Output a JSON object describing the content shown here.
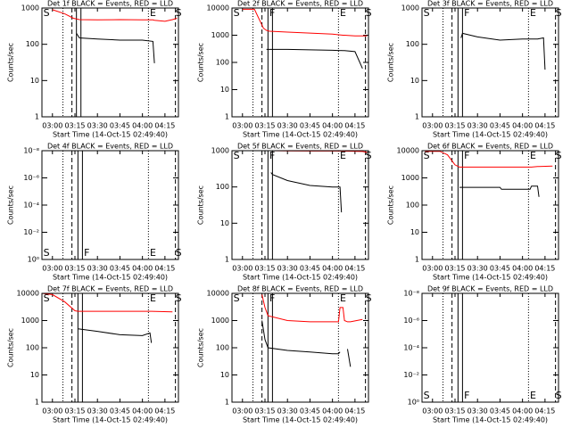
{
  "chart_data": [
    {
      "type": "line",
      "title": "Det 1f BLACK = Events, RED = LLD",
      "xlabel": "Start Time (14-Oct-15 02:49:40)",
      "ylabel": "Counts/sec",
      "log_y": true,
      "flags_at": "top",
      "xlim": [
        "02:53",
        "04:24"
      ],
      "xticks": [
        "03:00",
        "03:15",
        "03:30",
        "03:45",
        "04:00",
        "04:15"
      ],
      "ylim": [
        1,
        1000
      ],
      "yticks": [
        1,
        10,
        100,
        1000
      ],
      "x": [
        "03:00",
        "03:08",
        "03:14",
        "03:16",
        "03:18",
        "03:30",
        "03:45",
        "04:00",
        "04:07",
        "04:08",
        "04:15",
        "04:20",
        "04:23"
      ],
      "series": [
        {
          "name": "RED = LLD",
          "color": "#ff0000",
          "values": [
            900,
            700,
            520,
            500,
            480,
            470,
            480,
            470,
            470,
            460,
            430,
            480,
            520
          ]
        },
        {
          "name": "BLACK = Events",
          "color": "#000000",
          "values": [
            null,
            null,
            null,
            200,
            150,
            140,
            130,
            130,
            120,
            30,
            null,
            null,
            null
          ]
        }
      ],
      "markers": [
        {
          "time": "03:07",
          "style": "dotted"
        },
        {
          "time": "03:13",
          "style": "dashed"
        },
        {
          "time": "03:16",
          "style": "solid"
        },
        {
          "time": "03:19",
          "style": "solid"
        },
        {
          "time": "04:04",
          "style": "dotted"
        },
        {
          "time": "04:22",
          "style": "dashed"
        }
      ],
      "flags": [
        {
          "label": "S",
          "time": "02:54"
        },
        {
          "label": "E",
          "time": "04:05"
        },
        {
          "label": "S",
          "time": "04:22"
        }
      ]
    },
    {
      "type": "line",
      "title": "Det 2f BLACK = Events, RED = LLD",
      "xlabel": "Start Time (14-Oct-15 02:49:40)",
      "ylabel": "Counts/sec",
      "log_y": true,
      "flags_at": "top",
      "xlim": [
        "02:53",
        "04:24"
      ],
      "xticks": [
        "03:00",
        "03:15",
        "03:30",
        "03:45",
        "04:00",
        "04:15"
      ],
      "ylim": [
        1,
        10000
      ],
      "yticks": [
        1,
        10,
        100,
        1000,
        10000
      ],
      "x": [
        "03:00",
        "03:08",
        "03:14",
        "03:16",
        "03:18",
        "03:30",
        "03:45",
        "04:00",
        "04:07",
        "04:08",
        "04:15",
        "04:20",
        "04:23"
      ],
      "series": [
        {
          "name": "RED = LLD",
          "color": "#ff0000",
          "values": [
            9000,
            9000,
            1800,
            1500,
            1400,
            1300,
            1200,
            1100,
            1000,
            1000,
            950,
            950,
            950
          ]
        },
        {
          "name": "BLACK = Events",
          "color": "#000000",
          "values": [
            null,
            null,
            null,
            300,
            300,
            300,
            290,
            280,
            270,
            270,
            250,
            60,
            null
          ]
        }
      ],
      "markers": [
        {
          "time": "03:07",
          "style": "dotted"
        },
        {
          "time": "03:13",
          "style": "dashed"
        },
        {
          "time": "03:17",
          "style": "solid"
        },
        {
          "time": "03:20",
          "style": "solid"
        },
        {
          "time": "04:04",
          "style": "dotted"
        },
        {
          "time": "04:22",
          "style": "dashed"
        }
      ],
      "flags": [
        {
          "label": "S",
          "time": "02:54"
        },
        {
          "label": "F",
          "time": "03:18"
        },
        {
          "label": "E",
          "time": "04:05"
        },
        {
          "label": "S",
          "time": "04:22"
        }
      ]
    },
    {
      "type": "line",
      "title": "Det 3f BLACK = Events, RED = LLD",
      "xlabel": "Start Time (14-Oct-15 02:49:40)",
      "ylabel": "Counts/sec",
      "log_y": true,
      "flags_at": "top",
      "xlim": [
        "02:53",
        "04:24"
      ],
      "xticks": [
        "03:00",
        "03:15",
        "03:30",
        "03:45",
        "04:00",
        "04:15"
      ],
      "ylim": [
        1,
        1000
      ],
      "yticks": [
        1,
        10,
        100,
        1000
      ],
      "x": [
        "03:19",
        "03:20",
        "03:30",
        "03:45",
        "04:00",
        "04:10",
        "04:14",
        "04:15"
      ],
      "series": [
        {
          "name": "BLACK = Events",
          "color": "#000000",
          "values": [
            150,
            200,
            160,
            130,
            140,
            140,
            150,
            20
          ]
        }
      ],
      "markers": [
        {
          "time": "03:07",
          "style": "dotted"
        },
        {
          "time": "03:13",
          "style": "dashed"
        },
        {
          "time": "03:17",
          "style": "solid"
        },
        {
          "time": "03:20",
          "style": "solid"
        },
        {
          "time": "04:04",
          "style": "dotted"
        },
        {
          "time": "04:22",
          "style": "dashed"
        }
      ],
      "flags": [
        {
          "label": "S",
          "time": "02:54"
        },
        {
          "label": "F",
          "time": "03:21"
        },
        {
          "label": "E",
          "time": "04:05"
        },
        {
          "label": "S",
          "time": "04:22"
        }
      ]
    },
    {
      "type": "line",
      "title": "Det 4f BLACK = Events, RED = LLD",
      "xlabel": "Start Time (14-Oct-15 02:49:40)",
      "ylabel": "Counts/sec",
      "log_y": true,
      "flags_at": "bottom",
      "xlim": [
        "02:53",
        "04:24"
      ],
      "xticks": [
        "03:00",
        "03:15",
        "03:30",
        "03:45",
        "04:00",
        "04:15"
      ],
      "ylim": [
        1,
        1e-08
      ],
      "yticks": [
        {
          "value": 1,
          "label": "10⁰"
        },
        {
          "value": 0.01,
          "label": "10⁻²"
        },
        {
          "value": 0.0001,
          "label": "10⁻⁴"
        },
        {
          "value": 1e-06,
          "label": "10⁻⁶"
        },
        {
          "value": 1e-08,
          "label": "10⁻⁸"
        }
      ],
      "x": [],
      "series": [],
      "markers": [
        {
          "time": "03:07",
          "style": "dotted"
        },
        {
          "time": "03:13",
          "style": "dashed"
        },
        {
          "time": "03:17",
          "style": "solid"
        },
        {
          "time": "03:20",
          "style": "solid"
        },
        {
          "time": "04:04",
          "style": "dotted"
        },
        {
          "time": "04:22",
          "style": "dashed"
        }
      ],
      "flags": [
        {
          "label": "S",
          "time": "02:54"
        },
        {
          "label": "F",
          "time": "03:21"
        },
        {
          "label": "E",
          "time": "04:05"
        },
        {
          "label": "S",
          "time": "04:22"
        }
      ]
    },
    {
      "type": "line",
      "title": "Det 5f BLACK = Events, RED = LLD",
      "xlabel": "Start Time (14-Oct-15 02:49:40)",
      "ylabel": "Counts/sec",
      "log_y": true,
      "flags_at": "top",
      "xlim": [
        "02:53",
        "04:24"
      ],
      "xticks": [
        "03:00",
        "03:15",
        "03:30",
        "03:45",
        "04:00",
        "04:15"
      ],
      "ylim": [
        1,
        1000
      ],
      "yticks": [
        1,
        10,
        100,
        1000
      ],
      "x": [
        "03:19",
        "03:20",
        "03:30",
        "03:45",
        "04:00",
        "04:05",
        "04:06",
        "04:20",
        "04:23"
      ],
      "series": [
        {
          "name": "RED = LLD",
          "color": "#ff0000",
          "values": [
            1000,
            1000,
            990,
            980,
            980,
            980,
            980,
            950,
            900
          ]
        },
        {
          "name": "BLACK = Events",
          "color": "#000000",
          "values": [
            250,
            220,
            150,
            110,
            100,
            100,
            20,
            null,
            null
          ]
        }
      ],
      "markers": [
        {
          "time": "03:07",
          "style": "dotted"
        },
        {
          "time": "03:13",
          "style": "dashed"
        },
        {
          "time": "03:17",
          "style": "solid"
        },
        {
          "time": "03:20",
          "style": "solid"
        },
        {
          "time": "04:04",
          "style": "dotted"
        },
        {
          "time": "04:22",
          "style": "dashed"
        }
      ],
      "flags": [
        {
          "label": "S",
          "time": "02:54"
        },
        {
          "label": "F",
          "time": "03:18"
        },
        {
          "label": "E",
          "time": "04:05"
        },
        {
          "label": "S",
          "time": "04:22"
        }
      ]
    },
    {
      "type": "line",
      "title": "Det 6f BLACK = Events, RED = LLD",
      "xlabel": "Start Time (14-Oct-15 02:49:40)",
      "ylabel": "Counts/sec",
      "log_y": true,
      "flags_at": "top",
      "xlim": [
        "02:53",
        "04:24"
      ],
      "xticks": [
        "03:00",
        "03:15",
        "03:30",
        "03:45",
        "04:00",
        "04:15"
      ],
      "ylim": [
        1,
        10000
      ],
      "yticks": [
        1,
        10,
        100,
        1000,
        10000
      ],
      "x": [
        "02:55",
        "03:05",
        "03:10",
        "03:15",
        "03:18",
        "03:30",
        "03:45",
        "03:46",
        "04:05",
        "04:06",
        "04:10",
        "04:11",
        "04:20"
      ],
      "series": [
        {
          "name": "RED = LLD",
          "color": "#ff0000",
          "values": [
            9500,
            9500,
            7000,
            3000,
            2500,
            2500,
            2500,
            2500,
            2500,
            2500,
            2600,
            2600,
            2700
          ]
        },
        {
          "name": "BLACK = Events",
          "color": "#000000",
          "values": [
            null,
            null,
            null,
            null,
            450,
            450,
            450,
            380,
            380,
            500,
            500,
            200,
            null
          ]
        }
      ],
      "markers": [
        {
          "time": "03:07",
          "style": "dotted"
        },
        {
          "time": "03:13",
          "style": "dashed"
        },
        {
          "time": "03:17",
          "style": "solid"
        },
        {
          "time": "03:20",
          "style": "solid"
        },
        {
          "time": "04:04",
          "style": "dotted"
        },
        {
          "time": "04:22",
          "style": "dashed"
        }
      ],
      "flags": [
        {
          "label": "S",
          "time": "02:54"
        },
        {
          "label": "F",
          "time": "03:21"
        },
        {
          "label": "E",
          "time": "04:05"
        },
        {
          "label": "S",
          "time": "04:22"
        }
      ]
    },
    {
      "type": "line",
      "title": "Det 7f BLACK = Events, RED = LLD",
      "xlabel": "Start Time (14-Oct-15 02:49:40)",
      "ylabel": "Counts/sec",
      "log_y": true,
      "flags_at": "top",
      "xlim": [
        "02:53",
        "04:24"
      ],
      "xticks": [
        "03:00",
        "03:15",
        "03:30",
        "03:45",
        "04:00",
        "04:15"
      ],
      "ylim": [
        1,
        10000
      ],
      "yticks": [
        1,
        10,
        100,
        1000,
        10000
      ],
      "x": [
        "02:53",
        "03:00",
        "03:08",
        "03:15",
        "03:17",
        "03:30",
        "03:45",
        "04:00",
        "04:05",
        "04:06",
        "04:20"
      ],
      "series": [
        {
          "name": "RED = LLD",
          "color": "#ff0000",
          "values": [
            10000,
            9000,
            5000,
            2300,
            2200,
            2200,
            2200,
            2200,
            2200,
            2200,
            2100
          ]
        },
        {
          "name": "BLACK = Events",
          "color": "#000000",
          "values": [
            null,
            null,
            null,
            null,
            500,
            400,
            300,
            280,
            350,
            150,
            null
          ]
        }
      ],
      "markers": [
        {
          "time": "03:07",
          "style": "dotted"
        },
        {
          "time": "03:13",
          "style": "dashed"
        },
        {
          "time": "03:17",
          "style": "solid"
        },
        {
          "time": "03:20",
          "style": "solid"
        },
        {
          "time": "04:04",
          "style": "dotted"
        },
        {
          "time": "04:22",
          "style": "dashed"
        }
      ],
      "flags": [
        {
          "label": "S",
          "time": "02:54"
        },
        {
          "label": "E",
          "time": "04:05"
        },
        {
          "label": "S",
          "time": "04:22"
        }
      ]
    },
    {
      "type": "line",
      "title": "Det 8f BLACK = Events, RED = LLD",
      "xlabel": "Start Time (14-Oct-15 02:49:40)",
      "ylabel": "Counts/sec",
      "log_y": true,
      "flags_at": "top",
      "xlim": [
        "02:53",
        "04:24"
      ],
      "xticks": [
        "03:00",
        "03:15",
        "03:30",
        "03:45",
        "04:00",
        "04:15"
      ],
      "ylim": [
        1,
        10000
      ],
      "yticks": [
        1,
        10,
        100,
        1000,
        10000
      ],
      "x": [
        "03:13",
        "03:15",
        "03:17",
        "03:30",
        "03:45",
        "04:00",
        "04:04",
        "04:05",
        "04:07",
        "04:08",
        "04:10",
        "04:12",
        "04:20"
      ],
      "series": [
        {
          "name": "RED = LLD",
          "color": "#ff0000",
          "values": [
            9000,
            3000,
            1500,
            1000,
            900,
            900,
            900,
            3000,
            3000,
            1000,
            900,
            900,
            1100
          ]
        },
        {
          "name": "BLACK = Events",
          "color": "#000000",
          "values": [
            1000,
            200,
            100,
            80,
            70,
            60,
            60,
            70,
            null,
            null,
            90,
            20,
            null
          ]
        }
      ],
      "markers": [
        {
          "time": "03:07",
          "style": "dotted"
        },
        {
          "time": "03:13",
          "style": "dashed"
        },
        {
          "time": "03:17",
          "style": "solid"
        },
        {
          "time": "03:20",
          "style": "solid"
        },
        {
          "time": "04:04",
          "style": "dotted"
        },
        {
          "time": "04:22",
          "style": "dashed"
        }
      ],
      "flags": [
        {
          "label": "S",
          "time": "02:54"
        },
        {
          "label": "F",
          "time": "03:18"
        },
        {
          "label": "E",
          "time": "04:05"
        },
        {
          "label": "S",
          "time": "04:22"
        }
      ]
    },
    {
      "type": "line",
      "title": "Det 9f BLACK = Events, RED = LLD",
      "xlabel": "Start Time (14-Oct-15 02:49:40)",
      "log_y": true,
      "flags_at": "bottom",
      "xlim": [
        "02:53",
        "04:24"
      ],
      "xticks": [
        "03:00",
        "03:15",
        "03:30",
        "03:45",
        "04:00",
        "04:15"
      ],
      "ylim": [
        1,
        1e-08
      ],
      "yticks": [
        {
          "value": 1,
          "label": "10⁰"
        },
        {
          "value": 0.01,
          "label": "10⁻²"
        },
        {
          "value": 0.0001,
          "label": "10⁻⁴"
        },
        {
          "value": 1e-06,
          "label": "10⁻⁶"
        },
        {
          "value": 1e-08,
          "label": "10⁻⁸"
        }
      ],
      "x": [],
      "series": [],
      "markers": [
        {
          "time": "03:07",
          "style": "dotted"
        },
        {
          "time": "03:13",
          "style": "dashed"
        },
        {
          "time": "03:17",
          "style": "solid"
        },
        {
          "time": "03:20",
          "style": "solid"
        },
        {
          "time": "04:04",
          "style": "dotted"
        },
        {
          "time": "04:22",
          "style": "dashed"
        }
      ],
      "flags": [
        {
          "label": "S",
          "time": "02:54"
        },
        {
          "label": "F",
          "time": "03:21"
        },
        {
          "label": "E",
          "time": "04:05"
        },
        {
          "label": "S",
          "time": "04:22"
        }
      ]
    }
  ]
}
